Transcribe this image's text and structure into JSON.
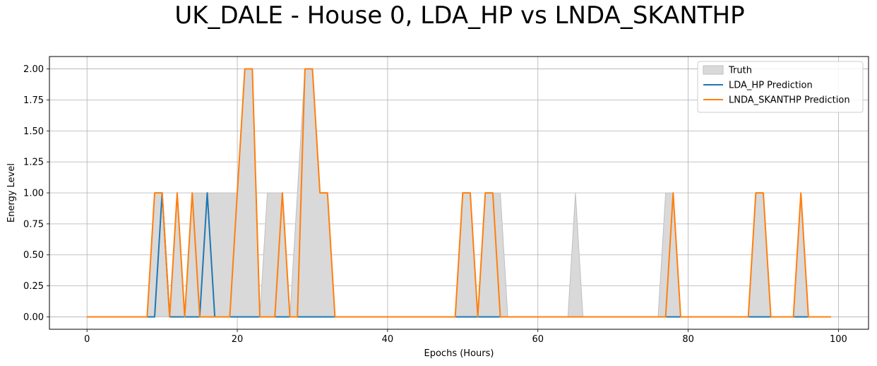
{
  "chart_data": {
    "type": "line",
    "title": "UK_DALE - House 0, LDA_HP vs LNDA_SKANTHP",
    "xlabel": "Epochs (Hours)",
    "ylabel": "Energy Level",
    "xlim": [
      -5,
      104
    ],
    "ylim": [
      -0.1,
      2.1
    ],
    "xticks": [
      0,
      20,
      40,
      60,
      80,
      100
    ],
    "yticks": [
      0.0,
      0.25,
      0.5,
      0.75,
      1.0,
      1.25,
      1.5,
      1.75,
      2.0
    ],
    "ytick_labels": [
      "0.00",
      "0.25",
      "0.50",
      "0.75",
      "1.00",
      "1.25",
      "1.50",
      "1.75",
      "2.00"
    ],
    "grid": true,
    "legend_position": "upper right",
    "x": [
      0,
      1,
      2,
      3,
      4,
      5,
      6,
      7,
      8,
      9,
      10,
      11,
      12,
      13,
      14,
      15,
      16,
      17,
      18,
      19,
      20,
      21,
      22,
      23,
      24,
      25,
      26,
      27,
      28,
      29,
      30,
      31,
      32,
      33,
      34,
      35,
      36,
      37,
      38,
      39,
      40,
      41,
      42,
      43,
      44,
      45,
      46,
      47,
      48,
      49,
      50,
      51,
      52,
      53,
      54,
      55,
      56,
      57,
      58,
      59,
      60,
      61,
      62,
      63,
      64,
      65,
      66,
      67,
      68,
      69,
      70,
      71,
      72,
      73,
      74,
      75,
      76,
      77,
      78,
      79,
      80,
      81,
      82,
      83,
      84,
      85,
      86,
      87,
      88,
      89,
      90,
      91,
      92,
      93,
      94,
      95,
      96,
      97,
      98,
      99
    ],
    "series": [
      {
        "name": "Truth",
        "kind": "area",
        "color": "#d9d9d9",
        "edge": "#bfbfbf",
        "values": [
          0,
          0,
          0,
          0,
          0,
          0,
          0,
          0,
          0,
          1,
          1,
          0,
          1,
          0,
          1,
          1,
          1,
          1,
          1,
          1,
          1,
          2,
          2,
          0,
          1,
          1,
          1,
          0,
          1,
          2,
          2,
          1,
          1,
          0,
          0,
          0,
          0,
          0,
          0,
          0,
          0,
          0,
          0,
          0,
          0,
          0,
          0,
          0,
          0,
          0,
          1,
          1,
          0,
          1,
          1,
          1,
          0,
          0,
          0,
          0,
          0,
          0,
          0,
          0,
          0,
          1,
          0,
          0,
          0,
          0,
          0,
          0,
          0,
          0,
          0,
          0,
          0,
          1,
          1,
          0,
          0,
          0,
          0,
          0,
          0,
          0,
          0,
          0,
          0,
          1,
          1,
          0,
          0,
          0,
          0,
          1,
          0,
          0,
          0,
          0
        ]
      },
      {
        "name": "LDA_HP Prediction",
        "kind": "line",
        "color": "#1f77b4",
        "values": [
          0,
          0,
          0,
          0,
          0,
          0,
          0,
          0,
          0,
          0,
          1,
          0,
          0,
          0,
          0,
          0,
          1,
          0,
          0,
          0,
          0,
          0,
          0,
          0,
          0,
          0,
          0,
          0,
          0,
          0,
          0,
          0,
          0,
          0,
          0,
          0,
          0,
          0,
          0,
          0,
          0,
          0,
          0,
          0,
          0,
          0,
          0,
          0,
          0,
          0,
          0,
          0,
          0,
          0,
          0,
          0,
          0,
          0,
          0,
          0,
          0,
          0,
          0,
          0,
          0,
          0,
          0,
          0,
          0,
          0,
          0,
          0,
          0,
          0,
          0,
          0,
          0,
          0,
          0,
          0,
          0,
          0,
          0,
          0,
          0,
          0,
          0,
          0,
          0,
          0,
          0,
          0,
          0,
          0,
          0,
          0,
          0,
          0,
          0,
          0
        ]
      },
      {
        "name": "LNDA_SKANTHP Prediction",
        "kind": "line",
        "color": "#ff7f0e",
        "values": [
          0,
          0,
          0,
          0,
          0,
          0,
          0,
          0,
          0,
          1,
          1,
          0,
          1,
          0,
          1,
          0,
          0,
          0,
          0,
          0,
          1,
          2,
          2,
          0,
          0,
          0,
          1,
          0,
          0,
          2,
          2,
          1,
          1,
          0,
          0,
          0,
          0,
          0,
          0,
          0,
          0,
          0,
          0,
          0,
          0,
          0,
          0,
          0,
          0,
          0,
          1,
          1,
          0,
          1,
          1,
          0,
          0,
          0,
          0,
          0,
          0,
          0,
          0,
          0,
          0,
          0,
          0,
          0,
          0,
          0,
          0,
          0,
          0,
          0,
          0,
          0,
          0,
          0,
          1,
          0,
          0,
          0,
          0,
          0,
          0,
          0,
          0,
          0,
          0,
          1,
          1,
          0,
          0,
          0,
          0,
          1,
          0,
          0,
          0,
          0
        ]
      }
    ]
  }
}
